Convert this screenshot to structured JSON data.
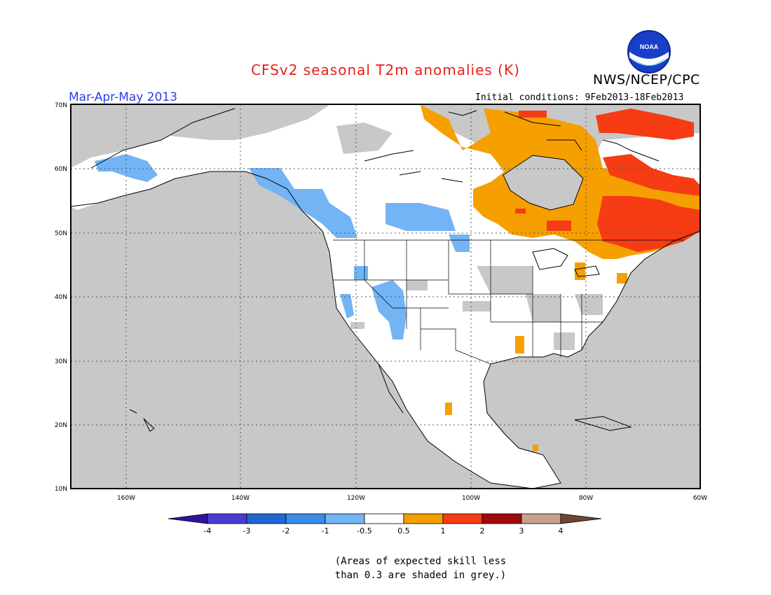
{
  "header": {
    "title": "CFSv2 seasonal T2m anomalies (K)",
    "agency": "NWS/NCEP/CPC",
    "season": "Mar-Apr-May 2013",
    "initial_conditions": "Initial conditions: 9Feb2013-18Feb2013",
    "logo_text": "NOAA"
  },
  "map": {
    "lat_labels": [
      "70N",
      "60N",
      "50N",
      "40N",
      "30N",
      "20N",
      "10N"
    ],
    "lon_labels": [
      "160W",
      "140W",
      "120W",
      "100W",
      "80W",
      "60W"
    ],
    "colors": {
      "land_white": "#ffffff",
      "ocean_grey": "#c8c8c8",
      "blue_light": "#73b4f5",
      "orange": "#f5a000",
      "red_orange": "#f53c14"
    }
  },
  "colorbar": {
    "labels": [
      "-4",
      "-3",
      "-2",
      "-1",
      "-0.5",
      "0.5",
      "1",
      "2",
      "3",
      "4"
    ],
    "colors": [
      "#3014a0",
      "#4a3cd2",
      "#2266d2",
      "#3a8ce6",
      "#73b4f5",
      "#ffffff",
      "#f5a000",
      "#f53c14",
      "#a00a0a",
      "#c8a090",
      "#6e4632"
    ]
  },
  "note": {
    "line1": "(Areas of expected skill less",
    "line2": "than 0.3 are shaded in grey.)"
  }
}
